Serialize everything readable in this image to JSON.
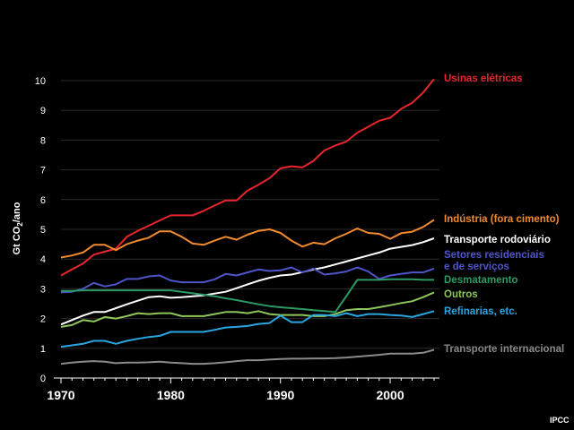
{
  "chart_data": {
    "type": "line",
    "title": "",
    "xlabel": "",
    "ylabel_prefix": "Gt CO",
    "ylabel_sub": "2",
    "ylabel_suffix": "/ano",
    "xlim": [
      1970,
      2004
    ],
    "ylim": [
      0,
      10
    ],
    "yticks": [
      0,
      1,
      2,
      3,
      4,
      5,
      6,
      7,
      8,
      9,
      10
    ],
    "xticks": [
      1970,
      1980,
      1990,
      2000
    ],
    "x": [
      1970,
      1971,
      1972,
      1973,
      1974,
      1975,
      1976,
      1977,
      1978,
      1979,
      1980,
      1981,
      1982,
      1983,
      1984,
      1985,
      1986,
      1987,
      1988,
      1989,
      1990,
      1991,
      1992,
      1993,
      1994,
      1995,
      1996,
      1997,
      1998,
      1999,
      2000,
      2001,
      2002,
      2003,
      2004
    ],
    "series": [
      {
        "name": "Usinas elétricas",
        "color": "#e8262b",
        "values": [
          3.45,
          3.65,
          3.85,
          4.15,
          4.25,
          4.35,
          4.75,
          4.95,
          5.12,
          5.3,
          5.47,
          5.47,
          5.47,
          5.62,
          5.8,
          5.97,
          5.97,
          6.3,
          6.5,
          6.72,
          7.05,
          7.12,
          7.08,
          7.3,
          7.65,
          7.82,
          7.95,
          8.25,
          8.45,
          8.65,
          8.75,
          9.05,
          9.25,
          9.6,
          10.05
        ]
      },
      {
        "name": "Indústria (fora cimento)",
        "color": "#f28a2e",
        "values": [
          4.05,
          4.12,
          4.22,
          4.48,
          4.48,
          4.3,
          4.5,
          4.62,
          4.72,
          4.93,
          4.93,
          4.75,
          4.52,
          4.48,
          4.62,
          4.75,
          4.65,
          4.82,
          4.95,
          5.0,
          4.88,
          4.62,
          4.42,
          4.55,
          4.5,
          4.7,
          4.85,
          5.03,
          4.88,
          4.85,
          4.68,
          4.87,
          4.92,
          5.08,
          5.32
        ]
      },
      {
        "name": "Transporte rodoviário",
        "color": "#ffffff",
        "values": [
          1.8,
          1.95,
          2.1,
          2.22,
          2.22,
          2.35,
          2.48,
          2.6,
          2.72,
          2.75,
          2.7,
          2.72,
          2.75,
          2.78,
          2.84,
          2.9,
          3.02,
          3.15,
          3.27,
          3.37,
          3.45,
          3.48,
          3.56,
          3.65,
          3.72,
          3.82,
          3.92,
          4.02,
          4.12,
          4.22,
          4.35,
          4.41,
          4.47,
          4.57,
          4.7
        ]
      },
      {
        "name": "Setores residenciais",
        "name2": "e de serviços",
        "color": "#4f55c8",
        "values": [
          2.88,
          2.9,
          3.0,
          3.2,
          3.08,
          3.15,
          3.33,
          3.33,
          3.42,
          3.45,
          3.28,
          3.22,
          3.22,
          3.22,
          3.32,
          3.5,
          3.45,
          3.55,
          3.65,
          3.6,
          3.62,
          3.72,
          3.55,
          3.68,
          3.48,
          3.52,
          3.58,
          3.72,
          3.58,
          3.33,
          3.45,
          3.5,
          3.55,
          3.55,
          3.68
        ]
      },
      {
        "name": "Desmatamento",
        "color": "#2c9a63",
        "values": [
          2.93,
          2.93,
          2.95,
          2.95,
          2.95,
          2.95,
          2.95,
          2.95,
          2.95,
          2.95,
          2.95,
          2.9,
          2.85,
          2.8,
          2.75,
          2.68,
          2.62,
          2.55,
          2.48,
          2.42,
          2.38,
          2.35,
          2.32,
          2.28,
          2.25,
          2.22,
          2.75,
          3.3,
          3.3,
          3.3,
          3.32,
          3.32,
          3.32,
          3.3,
          3.3
        ]
      },
      {
        "name": "Outros",
        "color": "#8dc65a",
        "values": [
          1.72,
          1.78,
          1.95,
          1.9,
          2.05,
          2.0,
          2.08,
          2.18,
          2.15,
          2.18,
          2.18,
          2.08,
          2.08,
          2.08,
          2.15,
          2.22,
          2.22,
          2.18,
          2.25,
          2.15,
          2.12,
          2.12,
          2.12,
          2.08,
          2.08,
          2.15,
          2.28,
          2.32,
          2.32,
          2.38,
          2.45,
          2.52,
          2.58,
          2.72,
          2.88
        ]
      },
      {
        "name": "Refinarias, etc.",
        "color": "#29a6e0",
        "values": [
          1.05,
          1.1,
          1.15,
          1.25,
          1.25,
          1.15,
          1.25,
          1.32,
          1.38,
          1.42,
          1.55,
          1.55,
          1.55,
          1.55,
          1.62,
          1.7,
          1.72,
          1.75,
          1.82,
          1.85,
          2.1,
          1.88,
          1.88,
          2.12,
          2.12,
          2.08,
          2.18,
          2.08,
          2.15,
          2.15,
          2.12,
          2.1,
          2.05,
          2.15,
          2.25
        ]
      },
      {
        "name": "Transporte internacional",
        "color": "#8a8a8a",
        "values": [
          0.48,
          0.52,
          0.55,
          0.57,
          0.55,
          0.5,
          0.52,
          0.52,
          0.53,
          0.55,
          0.52,
          0.5,
          0.48,
          0.48,
          0.5,
          0.53,
          0.57,
          0.6,
          0.6,
          0.62,
          0.64,
          0.65,
          0.65,
          0.66,
          0.66,
          0.67,
          0.69,
          0.72,
          0.75,
          0.78,
          0.82,
          0.82,
          0.82,
          0.85,
          0.95
        ]
      }
    ],
    "credit": "IPCC"
  }
}
